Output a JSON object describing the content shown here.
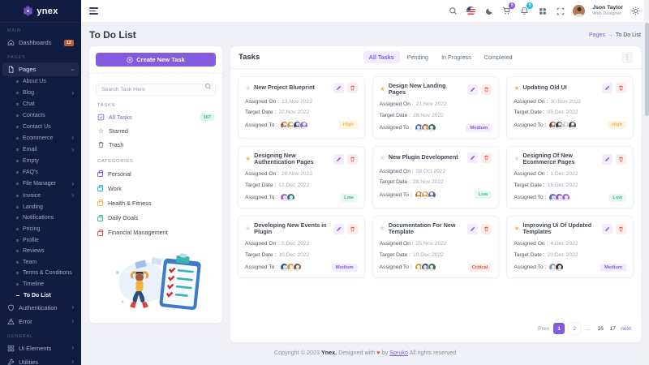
{
  "brand": {
    "name": "ynex"
  },
  "colors": {
    "primary": "#845adf",
    "info": "#23b7e5",
    "success": "#26bf94",
    "warning": "#f5b849",
    "danger": "#e6533c",
    "sidebar_bg": "#111c43",
    "body_bg": "#f0f1f7"
  },
  "header": {
    "user_name": "Json Taylor",
    "user_role": "Web Designer",
    "cart_badge": "5",
    "notification_badge": "5"
  },
  "page_title": "To Do List",
  "breadcrumb": {
    "parent": "Pages",
    "separator": "→",
    "current": "To Do List"
  },
  "sidebar": {
    "section_main": "Main",
    "dashboards_label": "Dashboards",
    "dashboards_badge": "12",
    "section_pages": "Pages",
    "pages_label": "Pages",
    "pages_chevron": "›",
    "pages_children": [
      {
        "label": "About Us"
      },
      {
        "label": "Blog",
        "chevron": true
      },
      {
        "label": "Chat"
      },
      {
        "label": "Contacts"
      },
      {
        "label": "Contact Us"
      },
      {
        "label": "Ecommerce",
        "chevron": true
      },
      {
        "label": "Email",
        "chevron": true
      },
      {
        "label": "Empty"
      },
      {
        "label": "FAQ's"
      },
      {
        "label": "File Manager",
        "chevron": true
      },
      {
        "label": "Invoice",
        "chevron": true
      },
      {
        "label": "Landing"
      },
      {
        "label": "Notifications"
      },
      {
        "label": "Pricing"
      },
      {
        "label": "Profile"
      },
      {
        "label": "Reviews"
      },
      {
        "label": "Team"
      },
      {
        "label": "Terms & Conditions"
      },
      {
        "label": "Timeline"
      },
      {
        "label": "To Do List",
        "active": true
      }
    ],
    "authentication_label": "Authentication",
    "error_label": "Error",
    "section_general": "General",
    "ui_elements_label": "Ui Elements",
    "utilities_label": "Utilities"
  },
  "task_panel": {
    "create_button": "Create New Task",
    "search_placeholder": "Search Task Here",
    "tasks_section": "Tasks",
    "nav_items": [
      {
        "label": "All Tasks",
        "badge": "167",
        "active": true,
        "icon": "checklist"
      },
      {
        "label": "Starred",
        "icon": "star"
      },
      {
        "label": "Trash",
        "icon": "trash"
      }
    ],
    "categories_section": "Categories",
    "categories": [
      {
        "label": "Personal",
        "color": "#845adf"
      },
      {
        "label": "Work",
        "color": "#23b7e5"
      },
      {
        "label": "Health & Fitness",
        "color": "#f5b849"
      },
      {
        "label": "Daily Goals",
        "color": "#26bf94"
      },
      {
        "label": "Financial Management",
        "color": "#e6533c"
      }
    ]
  },
  "tasks": {
    "title": "Tasks",
    "tabs": [
      {
        "label": "All Tasks",
        "active": true
      },
      {
        "label": "Pending"
      },
      {
        "label": "In Progress"
      },
      {
        "label": "Completed"
      }
    ],
    "field_labels": {
      "assigned_on": "Assigned On :",
      "target_date": "Target Date :",
      "assigned_to": "Assigned To :"
    },
    "cards": [
      {
        "title": "New Project Blueprint",
        "starred": false,
        "assigned_on": "13,Nov 2022",
        "target_date": "20,Nov 2022",
        "priority": "High",
        "avatars": [
          "#a15c3e",
          "#caa04b",
          "#2f4a6b",
          "#8d6bc9"
        ]
      },
      {
        "title": "Design New Landing Pages",
        "starred": true,
        "assigned_on": "21,Nov 2022",
        "target_date": "28,Nov 2022",
        "priority": "Medium",
        "avatars": [
          "#5a6acb",
          "#b06a4a",
          "#3c6e63"
        ]
      },
      {
        "title": "Updating Old UI",
        "starred": true,
        "assigned_on": "30,Nov 2022",
        "target_date": "05,Dec 2022",
        "priority": "High",
        "avatars": [
          "#7a4a32",
          "#41332c",
          "#c9cdd4",
          "#54423a"
        ]
      },
      {
        "title": "Designing New Authentication Pages",
        "starred": true,
        "assigned_on": "26,Nov 2022",
        "target_date": "12,Dec 2022",
        "priority": "Low",
        "avatars": [
          "#9a6ad1",
          "#3a7a6a"
        ]
      },
      {
        "title": "New Plugin Development",
        "starred": false,
        "assigned_on": "28,Oct 2022",
        "target_date": "28,Nov 2022",
        "priority": "Low",
        "avatars": [
          "#b07a4a",
          "#caa04b",
          "#5a6a8b"
        ]
      },
      {
        "title": "Designing Of New Ecommerce Pages",
        "starred": false,
        "assigned_on": "1,Dec 2022",
        "target_date": "15,Dec 2022",
        "priority": "Low",
        "avatars": [
          "#5a6acb",
          "#8d5ac9",
          "#a06ac9"
        ]
      },
      {
        "title": "Developing New Events in Plugin",
        "starred": false,
        "assigned_on": "5,Dec 2022",
        "target_date": "10,Dec 2022",
        "priority": "Medium",
        "avatars": [
          "#3a5a7b",
          "#caa04b",
          "#7a5a42"
        ]
      },
      {
        "title": "Documentation For New Template",
        "starred": false,
        "assigned_on": "25,Nov 2022",
        "target_date": "10,Dec 2022",
        "priority": "Critical",
        "avatars": [
          "#caa04b",
          "#3a5a7b",
          "#4a6a52"
        ]
      },
      {
        "title": "Improving Ui Of Updated Templates",
        "starred": true,
        "assigned_on": "4,Dec 2022",
        "target_date": "20,Dec 2022",
        "priority": "Medium",
        "avatars": [
          "#8a9ab0",
          "#41332c"
        ]
      }
    ],
    "pagination": [
      {
        "label": "Prev",
        "type": "nav"
      },
      {
        "label": "1",
        "type": "active"
      },
      {
        "label": "2",
        "type": "page-box"
      },
      {
        "label": "...",
        "type": "dots"
      },
      {
        "label": "16",
        "type": "page"
      },
      {
        "label": "17",
        "type": "page"
      },
      {
        "label": "next",
        "type": "next"
      }
    ]
  },
  "footer": {
    "prefix": "Copyright © 2023",
    "brand": "Ynex.",
    "middle": "Designed with",
    "heart": "♥",
    "by": "by",
    "link": "Spruko",
    "suffix": "All rights reserved"
  }
}
